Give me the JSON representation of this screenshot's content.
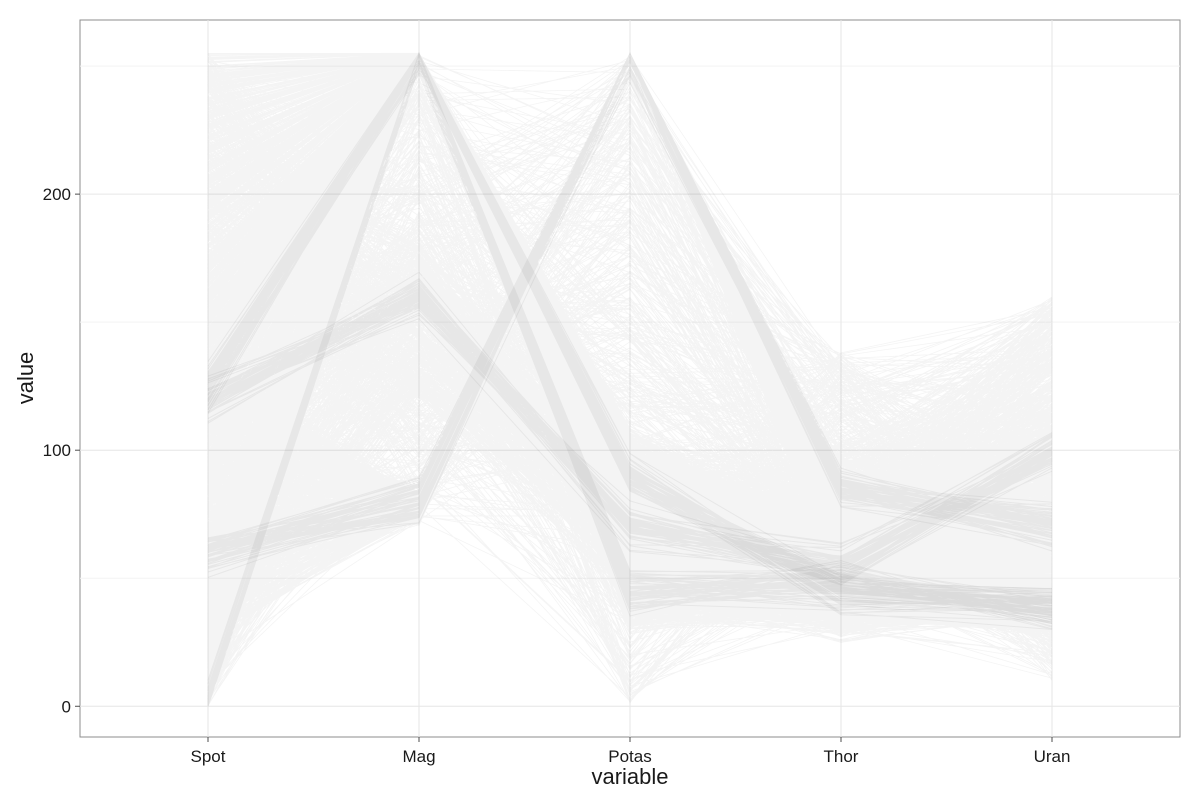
{
  "chart_data": {
    "type": "line",
    "subtype": "parallel-coordinates",
    "title": "",
    "xlabel": "variable",
    "ylabel": "value",
    "categories": [
      "Spot",
      "Mag",
      "Potas",
      "Thor",
      "Uran"
    ],
    "ylim": [
      -12,
      268
    ],
    "yticks": [
      0,
      100,
      200
    ],
    "grid": true,
    "legend": "none",
    "line_color": "#222222",
    "line_opacity": 0.05,
    "series_count": 2600,
    "column_ranges": {
      "Spot": [
        0,
        255
      ],
      "Mag": [
        70,
        255
      ],
      "Potas": [
        0,
        255
      ],
      "Thor": [
        25,
        140
      ],
      "Uran": [
        5,
        162
      ]
    },
    "dominant_bands": [
      {
        "name": "",
        "values": [
          0,
          255,
          90,
          45,
          40
        ]
      },
      {
        "name": "",
        "values": [
          60,
          80,
          255,
          85,
          70
        ]
      },
      {
        "name": "",
        "values": [
          125,
          255,
          45,
          48,
          38
        ]
      },
      {
        "name": "",
        "values": [
          120,
          160,
          70,
          55,
          100
        ]
      }
    ]
  }
}
